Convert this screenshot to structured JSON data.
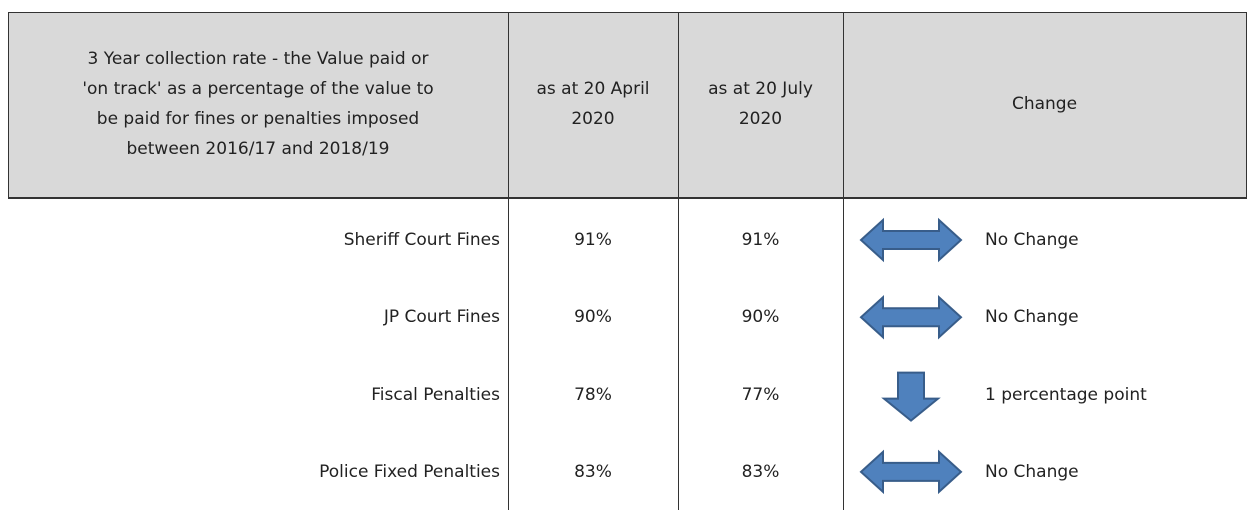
{
  "table": {
    "header": [
      [
        "3 Year collection rate - the Value paid or",
        "'on track' as a percentage of the value to",
        "be paid for fines or penalties imposed",
        "between 2016/17 and 2018/19"
      ],
      [
        "as at 20 April",
        "2020"
      ],
      [
        "as at 20 July",
        "2020"
      ],
      [
        "Change"
      ]
    ],
    "rows": [
      {
        "label": "Sheriff Court Fines",
        "april": "91%",
        "july": "91%",
        "arrow": "both",
        "change": "No Change"
      },
      {
        "label": "JP Court Fines",
        "april": "90%",
        "july": "90%",
        "arrow": "both",
        "change": "No Change"
      },
      {
        "label": "Fiscal Penalties",
        "april": "78%",
        "july": "77%",
        "arrow": "down",
        "change": "1 percentage point"
      },
      {
        "label": "Police Fixed Penalties",
        "april": "83%",
        "july": "83%",
        "arrow": "both",
        "change": "No Change"
      }
    ],
    "arrow_color": "#4f81bd"
  }
}
